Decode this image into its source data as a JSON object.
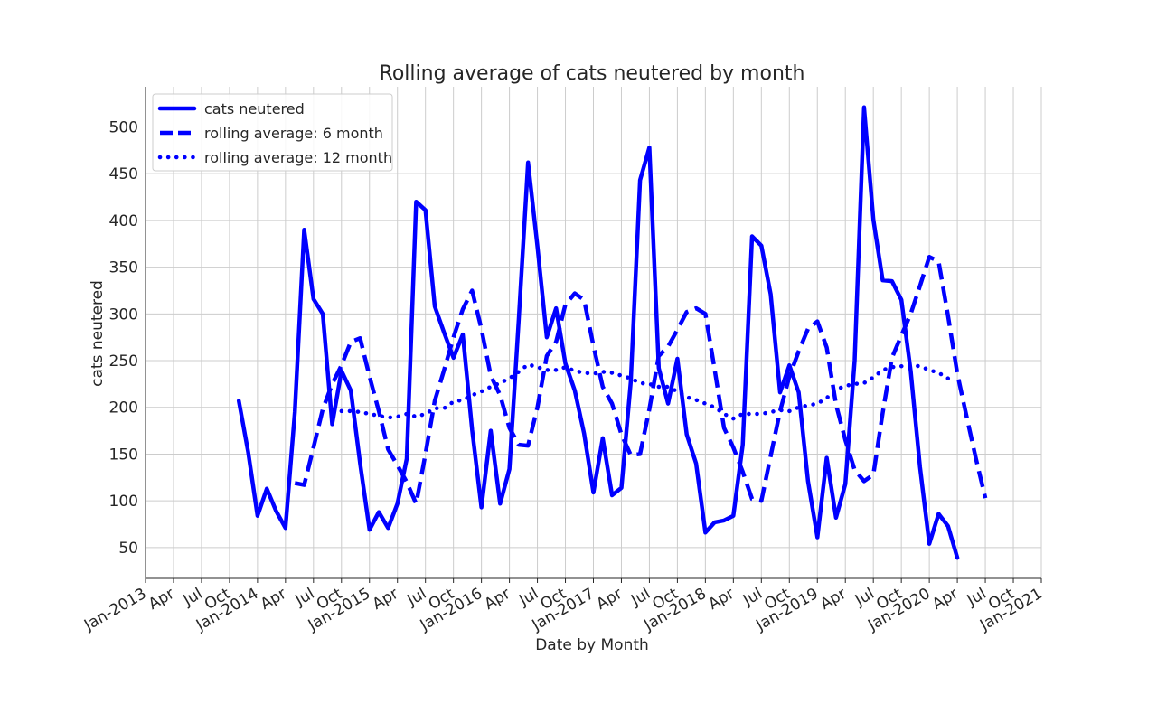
{
  "chart_data": {
    "type": "line",
    "title": "Rolling average of cats neutered by month",
    "xlabel": "Date by Month",
    "ylabel": "cats neutered",
    "ylim": [
      17,
      543
    ],
    "xlim": [
      "2013-01",
      "2021-01"
    ],
    "grid": true,
    "legend_position": "top-left",
    "y_ticks": [
      50,
      100,
      150,
      200,
      250,
      300,
      350,
      400,
      450,
      500
    ],
    "x_ticks": [
      {
        "date": "2013-01",
        "label": "Jan-2013"
      },
      {
        "date": "2013-04",
        "label": "Apr"
      },
      {
        "date": "2013-07",
        "label": "Jul"
      },
      {
        "date": "2013-10",
        "label": "Oct"
      },
      {
        "date": "2014-01",
        "label": "Jan-2014"
      },
      {
        "date": "2014-04",
        "label": "Apr"
      },
      {
        "date": "2014-07",
        "label": "Jul"
      },
      {
        "date": "2014-10",
        "label": "Oct"
      },
      {
        "date": "2015-01",
        "label": "Jan-2015"
      },
      {
        "date": "2015-04",
        "label": "Apr"
      },
      {
        "date": "2015-07",
        "label": "Jul"
      },
      {
        "date": "2015-10",
        "label": "Oct"
      },
      {
        "date": "2016-01",
        "label": "Jan-2016"
      },
      {
        "date": "2016-04",
        "label": "Apr"
      },
      {
        "date": "2016-07",
        "label": "Jul"
      },
      {
        "date": "2016-10",
        "label": "Oct"
      },
      {
        "date": "2017-01",
        "label": "Jan-2017"
      },
      {
        "date": "2017-04",
        "label": "Apr"
      },
      {
        "date": "2017-07",
        "label": "Jul"
      },
      {
        "date": "2017-10",
        "label": "Oct"
      },
      {
        "date": "2018-01",
        "label": "Jan-2018"
      },
      {
        "date": "2018-04",
        "label": "Apr"
      },
      {
        "date": "2018-07",
        "label": "Jul"
      },
      {
        "date": "2018-10",
        "label": "Oct"
      },
      {
        "date": "2019-01",
        "label": "Jan-2019"
      },
      {
        "date": "2019-04",
        "label": "Apr"
      },
      {
        "date": "2019-07",
        "label": "Jul"
      },
      {
        "date": "2019-10",
        "label": "Oct"
      },
      {
        "date": "2020-01",
        "label": "Jan-2020"
      },
      {
        "date": "2020-04",
        "label": "Apr"
      },
      {
        "date": "2020-07",
        "label": "Jul"
      },
      {
        "date": "2020-10",
        "label": "Oct"
      },
      {
        "date": "2021-01",
        "label": "Jan-2021"
      }
    ],
    "series": [
      {
        "name": "cats neutered",
        "style": "solid",
        "color": "#0000ff",
        "start": "2013-11",
        "values": [
          207,
          152,
          84,
          113,
          89,
          71,
          195,
          390,
          316,
          300,
          182,
          239,
          218,
          140,
          69,
          88,
          71,
          97,
          145,
          420,
          411,
          308,
          280,
          253,
          278,
          176,
          93,
          175,
          97,
          134,
          294,
          462,
          372,
          275,
          306,
          247,
          218,
          172,
          109,
          167,
          106,
          114,
          227,
          443,
          478,
          242,
          204,
          252,
          171,
          140,
          66,
          77,
          79,
          84,
          160,
          383,
          373,
          321,
          216,
          245,
          216,
          121,
          61,
          146,
          82,
          118,
          250,
          521,
          401,
          336,
          335,
          315,
          239,
          136,
          54,
          86,
          73,
          39
        ]
      },
      {
        "name": "rolling average: 6 month",
        "style": "dashed",
        "color": "#0000ff",
        "start": "2014-05",
        "values": [
          119,
          117,
          157,
          198,
          225,
          245,
          270,
          274,
          233,
          196,
          155,
          138,
          120,
          97,
          150,
          207,
          240,
          275,
          305,
          325,
          284,
          234,
          213,
          178,
          160,
          159,
          200,
          255,
          270,
          310,
          322,
          315,
          266,
          222,
          204,
          171,
          149,
          150,
          198,
          255,
          265,
          283,
          302,
          306,
          300,
          240,
          178,
          157,
          131,
          102,
          100,
          148,
          196,
          233,
          260,
          284,
          292,
          264,
          203,
          165,
          133,
          121,
          128,
          194,
          253,
          277,
          300,
          330,
          361,
          356,
          298,
          236,
          190,
          145,
          103
        ]
      },
      {
        "name": "rolling average: 12 month",
        "style": "dotted",
        "color": "#0000ff",
        "start": "2014-10",
        "values": [
          196,
          196,
          195,
          193,
          191,
          189,
          190,
          193,
          190,
          193,
          199,
          199,
          206,
          208,
          213,
          217,
          222,
          226,
          231,
          238,
          246,
          243,
          240,
          240,
          243,
          239,
          237,
          236,
          238,
          237,
          234,
          231,
          226,
          225,
          222,
          222,
          217,
          211,
          208,
          204,
          200,
          193,
          188,
          193,
          193,
          193,
          195,
          197,
          196,
          200,
          202,
          204,
          210,
          219,
          223,
          225,
          226,
          232,
          240,
          243,
          244,
          245,
          244,
          240,
          237,
          231
        ]
      }
    ]
  }
}
